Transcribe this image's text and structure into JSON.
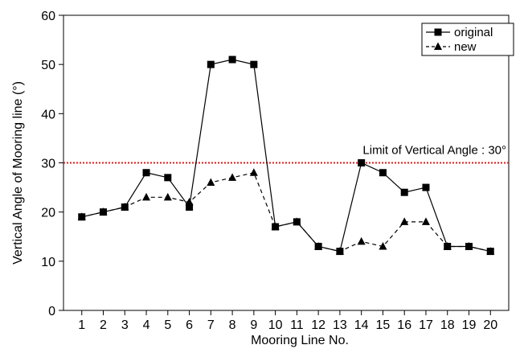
{
  "chart_data": {
    "type": "line",
    "title": "",
    "xlabel": "Mooring Line No.",
    "ylabel": "Vertical Angle of Mooring line (°)",
    "x": [
      1,
      2,
      3,
      4,
      5,
      6,
      7,
      8,
      9,
      10,
      11,
      12,
      13,
      14,
      15,
      16,
      17,
      18,
      19,
      20
    ],
    "ylim": [
      0,
      60
    ],
    "yticks": [
      0,
      10,
      20,
      30,
      40,
      50,
      60
    ],
    "grid": false,
    "legend_position": "top-right",
    "series": [
      {
        "name": "original",
        "marker": "square",
        "line": "solid",
        "values": [
          19,
          20,
          21,
          28,
          27,
          21,
          50,
          51,
          50,
          17,
          18,
          13,
          12,
          30,
          28,
          24,
          25,
          13,
          13,
          12
        ]
      },
      {
        "name": "new",
        "marker": "triangle",
        "line": "dashed",
        "values": [
          19,
          20,
          21,
          23,
          23,
          22,
          26,
          27,
          28,
          17,
          18,
          13,
          12,
          14,
          13,
          18,
          18,
          13,
          13,
          12
        ]
      }
    ],
    "annotations": [
      {
        "text": "Limit of Vertical Angle : 30°",
        "y": 30,
        "style": "dotted",
        "color": "#e41a1a"
      }
    ]
  }
}
